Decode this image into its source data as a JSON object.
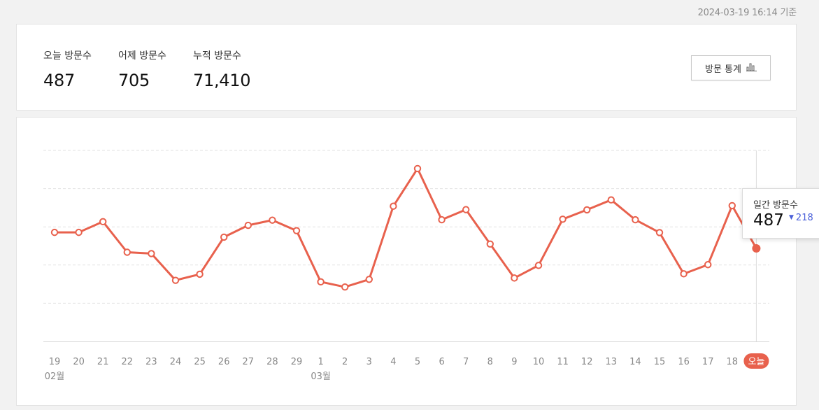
{
  "timestamp": "2024-03-19 16:14 기준",
  "summary": {
    "today_label": "오늘 방문수",
    "today_value": "487",
    "yesterday_label": "어제 방문수",
    "yesterday_value": "705",
    "total_label": "누적 방문수",
    "total_value": "71,410",
    "stats_button_label": "방문 통계",
    "stats_button_icon": "bar-chart-icon"
  },
  "tooltip": {
    "label": "일간 방문수",
    "value": "487",
    "delta": "218",
    "delta_direction": "down",
    "delta_color": "#4a5fd9"
  },
  "colors": {
    "line": "#e8614d",
    "today_badge": "#e8614d",
    "grid": "#e2e2e2",
    "axis_text": "#888888"
  },
  "chart_data": {
    "type": "line",
    "title": "",
    "xlabel": "",
    "ylabel": "",
    "grid": true,
    "ylim": [
      0,
      1000
    ],
    "categories": [
      "19",
      "20",
      "21",
      "22",
      "23",
      "24",
      "25",
      "26",
      "27",
      "28",
      "29",
      "1",
      "2",
      "3",
      "4",
      "5",
      "6",
      "7",
      "8",
      "9",
      "10",
      "11",
      "12",
      "13",
      "14",
      "15",
      "16",
      "17",
      "18",
      "오늘"
    ],
    "month_labels": [
      {
        "at": "19",
        "label": "02월"
      },
      {
        "at": "1",
        "label": "03월"
      }
    ],
    "series": [
      {
        "values": [
          571,
          571,
          627,
          467,
          460,
          320,
          352,
          546,
          608,
          635,
          580,
          312,
          285,
          325,
          708,
          905,
          637,
          690,
          510,
          332,
          398,
          640,
          689,
          741,
          637,
          570,
          354,
          402,
          711,
          487
        ]
      }
    ],
    "highlight_last": true
  }
}
